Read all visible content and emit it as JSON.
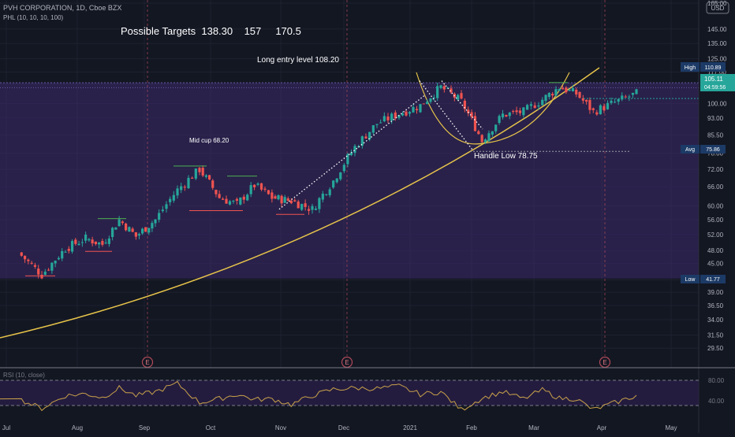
{
  "header": {
    "symbol": "PVH CORPORATION, 1D, Cboe BZX",
    "indicator": "PHL (10, 10, 10, 100)",
    "currency": "USD"
  },
  "annotations": {
    "targets": "Possible Targets  138.30    157     170.5",
    "entry": "Long entry level  108.20",
    "mid_cup": "Mid cup  68.20",
    "handle_low": "Handle Low 78.75"
  },
  "markers": {
    "high_label": "High",
    "high_value": "110.89",
    "avg_label": "Avg",
    "avg_value": "75.86",
    "low_label": "Low",
    "low_value": "41.77",
    "price": "105.11",
    "countdown": "04:59:56",
    "earnings": "E"
  },
  "rsi_panel": {
    "title": "RSI (10, close)",
    "levels": [
      "80.00",
      "40.00"
    ]
  },
  "colors": {
    "background": "#131722",
    "up": "#26a69a",
    "down": "#ef5350",
    "band": "#3d2a6b",
    "arc": "#e6c34a",
    "rsi": "#c9a24a",
    "price_tag": "#26a69a",
    "marker_tag": "#1c3a66"
  },
  "chart_data": {
    "type": "candlestick",
    "y_scale": "log",
    "ylim": [
      27.5,
      165
    ],
    "y_ticks": [
      "165.00",
      "145.00",
      "135.00",
      "125.00",
      "117.00",
      "110.00",
      "100.00",
      "93.00",
      "85.50",
      "78.00",
      "72.00",
      "66.00",
      "60.00",
      "56.00",
      "52.00",
      "48.00",
      "45.00",
      "41.50",
      "39.00",
      "36.50",
      "34.00",
      "31.50",
      "29.50"
    ],
    "x_ticks": [
      "Jul",
      "Aug",
      "Sep",
      "Oct",
      "Nov",
      "Dec",
      "2021",
      "Feb",
      "Mar",
      "Apr",
      "May"
    ],
    "key_levels": {
      "high": 110.89,
      "avg": 75.86,
      "low": 41.77,
      "last": 105.11,
      "entry": 108.2,
      "handle_low": 78.75,
      "mid_cup": 68.2
    },
    "targets": [
      138.3,
      157,
      170.5
    ],
    "earnings_months": [
      "Sep",
      "Dec",
      "Apr"
    ],
    "anchors": [
      [
        "Jul",
        47.5
      ],
      [
        "Jul",
        42.5
      ],
      [
        "Jul",
        48.5
      ],
      [
        "Aug",
        51.0
      ],
      [
        "Aug",
        49.5
      ],
      [
        "Aug",
        56.0
      ],
      [
        "Aug",
        51.5
      ],
      [
        "Sep",
        56.0
      ],
      [
        "Sep",
        65.0
      ],
      [
        "Sep",
        72.0
      ],
      [
        "Oct",
        62.5
      ],
      [
        "Oct",
        60.5
      ],
      [
        "Oct",
        66.5
      ],
      [
        "Oct",
        62.5
      ],
      [
        "Nov",
        61.5
      ],
      [
        "Nov",
        59.0
      ],
      [
        "Nov",
        68.0
      ],
      [
        "Dec",
        80.5
      ],
      [
        "Dec",
        90.5
      ],
      [
        "Dec",
        95.0
      ],
      [
        "2021",
        99.0
      ],
      [
        "2021",
        108.5
      ],
      [
        "2021",
        101.0
      ],
      [
        "Feb",
        83.0
      ],
      [
        "Feb",
        94.5
      ],
      [
        "Feb",
        96.0
      ],
      [
        "Mar",
        102.0
      ],
      [
        "Mar",
        108.5
      ],
      [
        "Mar",
        105.0
      ],
      [
        "Mar",
        96.0
      ],
      [
        "Apr",
        105.11
      ]
    ],
    "rsi": {
      "ylim": [
        20,
        100
      ],
      "levels": [
        80,
        40
      ],
      "values": [
        55,
        40,
        60,
        63,
        57,
        72,
        60,
        66,
        79,
        49,
        55,
        62,
        54,
        55,
        46,
        60,
        70,
        72,
        71,
        75,
        62,
        66,
        38,
        56,
        66,
        55,
        69,
        56,
        55,
        38,
        60
      ]
    }
  }
}
